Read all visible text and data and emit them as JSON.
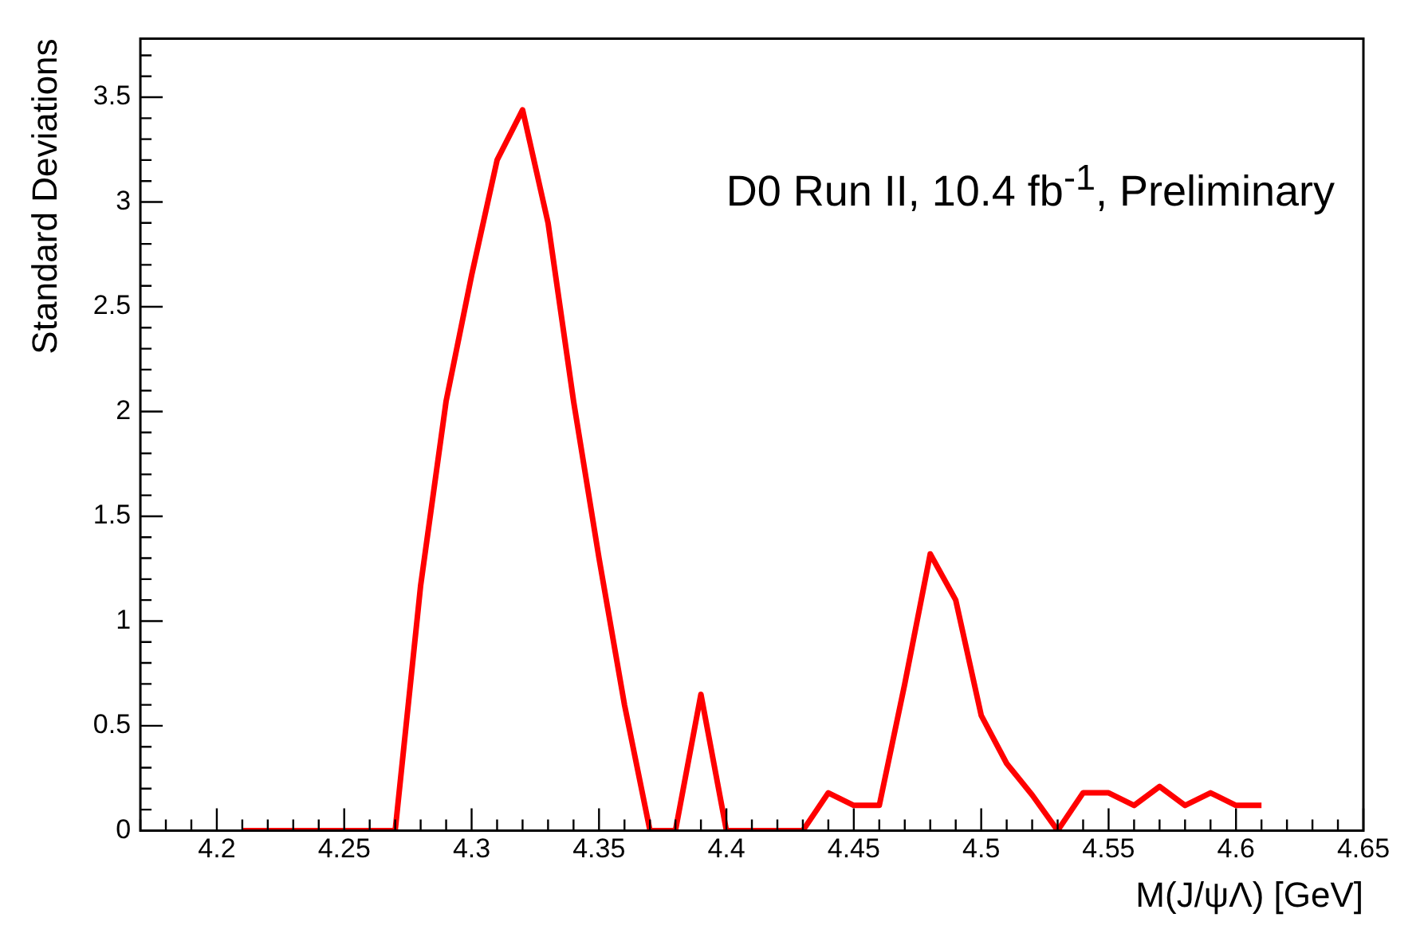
{
  "chart_data": {
    "type": "line",
    "xlabel": "M(J/ψΛ) [GeV]",
    "ylabel": "Standard Deviations",
    "annotations": [
      "D0 Run II, 10.4 fb$^{-1}$, Preliminary"
    ],
    "x": [
      4.21,
      4.22,
      4.23,
      4.24,
      4.25,
      4.26,
      4.27,
      4.28,
      4.29,
      4.3,
      4.31,
      4.32,
      4.33,
      4.34,
      4.35,
      4.36,
      4.37,
      4.38,
      4.39,
      4.4,
      4.41,
      4.42,
      4.43,
      4.44,
      4.45,
      4.46,
      4.47,
      4.48,
      4.49,
      4.5,
      4.51,
      4.52,
      4.53,
      4.54,
      4.55,
      4.56,
      4.57,
      4.58,
      4.59,
      4.6,
      4.61
    ],
    "series": [
      {
        "color": "#ff0000",
        "values": [
          0,
          0,
          0,
          0,
          0,
          0,
          0,
          1.17,
          2.05,
          2.65,
          3.2,
          3.44,
          2.9,
          2.05,
          1.3,
          0.6,
          0,
          0,
          0.65,
          0,
          0,
          0,
          0,
          0.18,
          0.12,
          0.12,
          0.7,
          1.32,
          1.1,
          0.55,
          0.32,
          0.17,
          0,
          0.18,
          0.18,
          0.12,
          0.21,
          0.12,
          0.18,
          0.12,
          0.12
        ]
      }
    ],
    "marker": "none",
    "line_style": "solid",
    "xlim": [
      4.17,
      4.65
    ],
    "xticks": [
      {
        "value": 4.17,
        "label": null
      },
      {
        "value": 4.18,
        "label": null
      },
      {
        "value": 4.19,
        "label": null
      },
      4.2,
      {
        "value": 4.21,
        "label": null
      },
      {
        "value": 4.22,
        "label": null
      },
      {
        "value": 4.23,
        "label": null
      },
      {
        "value": 4.24,
        "label": null
      },
      4.25,
      {
        "value": 4.26,
        "label": null
      },
      {
        "value": 4.27,
        "label": null
      },
      {
        "value": 4.28,
        "label": null
      },
      {
        "value": 4.29,
        "label": null
      },
      4.3,
      {
        "value": 4.31,
        "label": null
      },
      {
        "value": 4.32,
        "label": null
      },
      {
        "value": 4.33,
        "label": null
      },
      {
        "value": 4.34,
        "label": null
      },
      4.35,
      {
        "value": 4.36,
        "label": null
      },
      {
        "value": 4.37,
        "label": null
      },
      {
        "value": 4.38,
        "label": null
      },
      {
        "value": 4.39,
        "label": null
      },
      4.4,
      {
        "value": 4.41,
        "label": null
      },
      {
        "value": 4.42,
        "label": null
      },
      {
        "value": 4.43,
        "label": null
      },
      {
        "value": 4.44,
        "label": null
      },
      4.45,
      {
        "value": 4.46,
        "label": null
      },
      {
        "value": 4.47,
        "label": null
      },
      {
        "value": 4.48,
        "label": null
      },
      {
        "value": 4.49,
        "label": null
      },
      4.5,
      {
        "value": 4.51,
        "label": null
      },
      {
        "value": 4.52,
        "label": null
      },
      {
        "value": 4.53,
        "label": null
      },
      {
        "value": 4.54,
        "label": null
      },
      4.55,
      {
        "value": 4.56,
        "label": null
      },
      {
        "value": 4.57,
        "label": null
      },
      {
        "value": 4.58,
        "label": null
      },
      {
        "value": 4.59,
        "label": null
      },
      4.6,
      {
        "value": 4.61,
        "label": null
      },
      {
        "value": 4.62,
        "label": null
      },
      {
        "value": 4.63,
        "label": null
      },
      {
        "value": 4.64,
        "label": null
      },
      4.65
    ],
    "ylim": [
      0,
      3.78
    ],
    "yticks": [
      0,
      {
        "value": 0.1,
        "label": null
      },
      {
        "value": 0.2,
        "label": null
      },
      {
        "value": 0.3,
        "label": null
      },
      {
        "value": 0.4,
        "label": null
      },
      0.5,
      {
        "value": 0.6,
        "label": null
      },
      {
        "value": 0.7,
        "label": null
      },
      {
        "value": 0.8,
        "label": null
      },
      {
        "value": 0.9,
        "label": null
      },
      1,
      {
        "value": 1.1,
        "label": null
      },
      {
        "value": 1.2,
        "label": null
      },
      {
        "value": 1.3,
        "label": null
      },
      {
        "value": 1.4,
        "label": null
      },
      1.5,
      {
        "value": 1.6,
        "label": null
      },
      {
        "value": 1.7,
        "label": null
      },
      {
        "value": 1.8,
        "label": null
      },
      {
        "value": 1.9,
        "label": null
      },
      2,
      {
        "value": 2.1,
        "label": null
      },
      {
        "value": 2.2,
        "label": null
      },
      {
        "value": 2.3,
        "label": null
      },
      {
        "value": 2.4,
        "label": null
      },
      2.5,
      {
        "value": 2.6,
        "label": null
      },
      {
        "value": 2.7,
        "label": null
      },
      {
        "value": 2.8,
        "label": null
      },
      {
        "value": 2.9,
        "label": null
      },
      3,
      {
        "value": 3.1,
        "label": null
      },
      {
        "value": 3.2,
        "label": null
      },
      {
        "value": 3.3,
        "label": null
      },
      {
        "value": 3.4,
        "label": null
      },
      3.5,
      {
        "value": 3.6,
        "label": null
      },
      {
        "value": 3.7,
        "label": null
      }
    ]
  }
}
